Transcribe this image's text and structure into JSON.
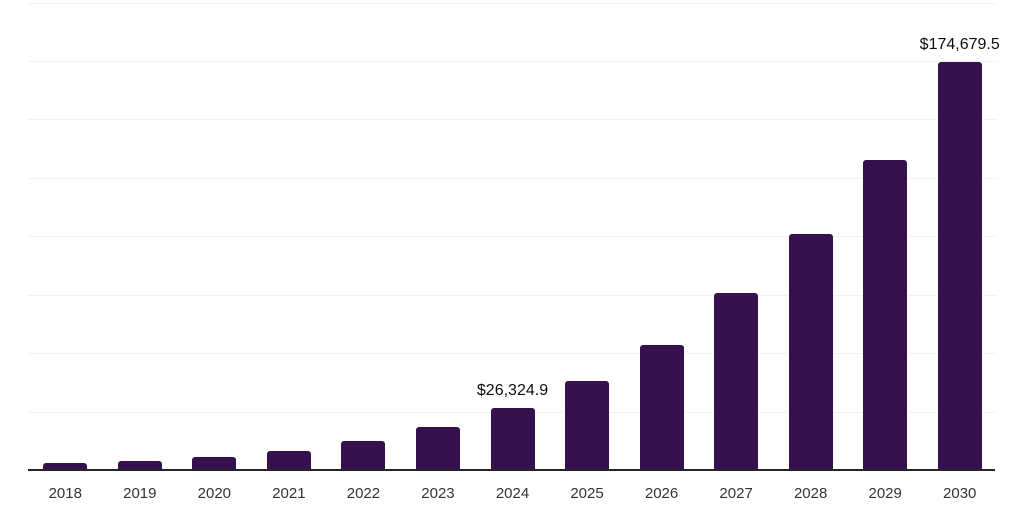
{
  "chart_data": {
    "type": "bar",
    "title": "",
    "xlabel": "",
    "ylabel": "",
    "categories": [
      "2018",
      "2019",
      "2020",
      "2021",
      "2022",
      "2023",
      "2024",
      "2025",
      "2026",
      "2027",
      "2028",
      "2029",
      "2030"
    ],
    "values": [
      3000,
      3850,
      5550,
      8100,
      12200,
      18200,
      26324.9,
      37900,
      53600,
      75600,
      100900,
      132800,
      174679.5
    ],
    "data_labels": [
      {
        "category": "2024",
        "text": "$26,324.9"
      },
      {
        "category": "2030",
        "text": "$174,679.5"
      }
    ],
    "ylim": [
      0,
      200000
    ],
    "grid_interval": 25000,
    "grid": true,
    "legend": false,
    "colors": {
      "bar": "#36114D",
      "gridline": "#f2f2f2",
      "axis_line": "#262626",
      "tick_label": "#333333",
      "data_label": "#0d0d0d",
      "background": "#ffffff"
    }
  }
}
